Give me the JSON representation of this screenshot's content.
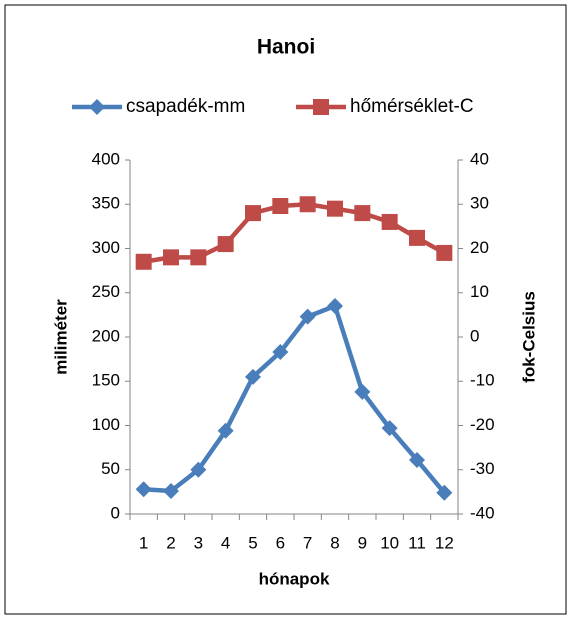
{
  "chart_data": {
    "type": "line",
    "title": "Hanoi",
    "categories": [
      "1",
      "2",
      "3",
      "4",
      "5",
      "6",
      "7",
      "8",
      "9",
      "10",
      "11",
      "12"
    ],
    "xlabel": "hónapok",
    "ylabel": "miliméter",
    "y2label": "fok-Celsius",
    "series": [
      {
        "name": "csapadék-mm",
        "color": "#4a7ebb",
        "marker": "diamond",
        "values": [
          28,
          26,
          50,
          94,
          155,
          183,
          223,
          235,
          138,
          97,
          61,
          24
        ]
      },
      {
        "name": "hőmérséklet-C",
        "color": "#be4b48",
        "marker": "square",
        "axis": "y2",
        "values": [
          17,
          18,
          18,
          21,
          28,
          29.6,
          30,
          29,
          28,
          26,
          22.4,
          19
        ]
      }
    ],
    "ylim": [
      0,
      400
    ],
    "yticks": [
      0,
      50,
      100,
      150,
      200,
      250,
      300,
      350,
      400
    ],
    "y2lim": [
      -40,
      40
    ],
    "y2ticks": [
      -40,
      -30,
      -20,
      -10,
      0,
      10,
      20,
      30,
      40
    ],
    "legend": "top",
    "grid": false
  }
}
